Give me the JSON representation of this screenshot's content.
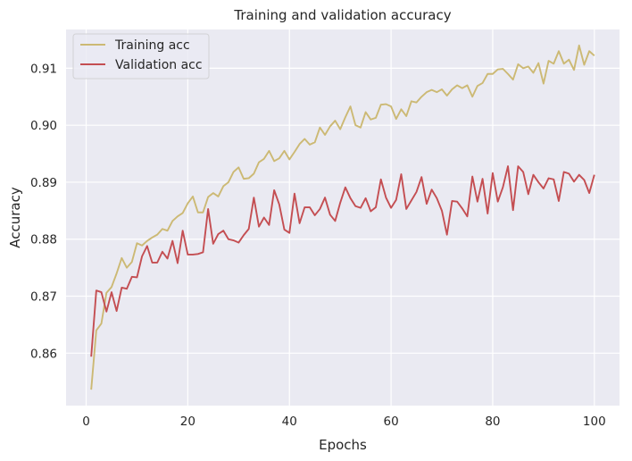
{
  "chart_data": {
    "type": "line",
    "title": "Training and validation accuracy",
    "xlabel": "Epochs",
    "ylabel": "Accuracy",
    "xlim": [
      -3.95,
      104.95
    ],
    "ylim": [
      0.8508,
      0.9168
    ],
    "xticks": [
      0,
      20,
      40,
      60,
      80,
      100
    ],
    "xtick_labels": [
      "0",
      "20",
      "40",
      "60",
      "80",
      "100"
    ],
    "yticks": [
      0.86,
      0.87,
      0.88,
      0.89,
      0.9,
      0.91
    ],
    "ytick_labels": [
      "0.86",
      "0.87",
      "0.88",
      "0.89",
      "0.90",
      "0.91"
    ],
    "grid": true,
    "legend": "top-left",
    "x": [
      1,
      2,
      3,
      4,
      5,
      6,
      7,
      8,
      9,
      10,
      11,
      12,
      13,
      14,
      15,
      16,
      17,
      18,
      19,
      20,
      21,
      22,
      23,
      24,
      25,
      26,
      27,
      28,
      29,
      30,
      31,
      32,
      33,
      34,
      35,
      36,
      37,
      38,
      39,
      40,
      41,
      42,
      43,
      44,
      45,
      46,
      47,
      48,
      49,
      50,
      51,
      52,
      53,
      54,
      55,
      56,
      57,
      58,
      59,
      60,
      61,
      62,
      63,
      64,
      65,
      66,
      67,
      68,
      69,
      70,
      71,
      72,
      73,
      74,
      75,
      76,
      77,
      78,
      79,
      80,
      81,
      82,
      83,
      84,
      85,
      86,
      87,
      88,
      89,
      90,
      91,
      92,
      93,
      94,
      95,
      96,
      97,
      98,
      99,
      100
    ],
    "series": [
      {
        "name": "Training acc",
        "color": "#ccb974",
        "values": [
          0.8536,
          0.864,
          0.8652,
          0.8706,
          0.8716,
          0.874,
          0.8767,
          0.875,
          0.876,
          0.8793,
          0.8789,
          0.8797,
          0.8803,
          0.8808,
          0.8818,
          0.8815,
          0.8832,
          0.884,
          0.8846,
          0.8863,
          0.8875,
          0.8847,
          0.8847,
          0.8874,
          0.8881,
          0.8875,
          0.8893,
          0.89,
          0.8918,
          0.8926,
          0.8906,
          0.8907,
          0.8915,
          0.8935,
          0.8941,
          0.8955,
          0.8937,
          0.8942,
          0.8955,
          0.894,
          0.8953,
          0.8967,
          0.8976,
          0.8966,
          0.897,
          0.8996,
          0.8983,
          0.8998,
          0.9008,
          0.8993,
          0.9014,
          0.9033,
          0.9,
          0.8996,
          0.9023,
          0.901,
          0.9013,
          0.9036,
          0.9037,
          0.9033,
          0.9011,
          0.9028,
          0.9016,
          0.9042,
          0.904,
          0.905,
          0.9058,
          0.9062,
          0.9058,
          0.9063,
          0.9052,
          0.9063,
          0.907,
          0.9065,
          0.907,
          0.905,
          0.9069,
          0.9074,
          0.909,
          0.909,
          0.9098,
          0.9099,
          0.909,
          0.908,
          0.9107,
          0.91,
          0.9103,
          0.9092,
          0.9109,
          0.9073,
          0.9113,
          0.9108,
          0.913,
          0.9108,
          0.9115,
          0.9097,
          0.914,
          0.9106,
          0.913,
          0.9122
        ]
      },
      {
        "name": "Validation acc",
        "color": "#c44e52",
        "values": [
          0.8594,
          0.871,
          0.8707,
          0.8673,
          0.8707,
          0.8674,
          0.8715,
          0.8713,
          0.8734,
          0.8733,
          0.877,
          0.8788,
          0.8759,
          0.8759,
          0.8778,
          0.8766,
          0.8797,
          0.8758,
          0.8815,
          0.8773,
          0.8773,
          0.8774,
          0.8777,
          0.8853,
          0.8792,
          0.8809,
          0.8815,
          0.88,
          0.8798,
          0.8794,
          0.8807,
          0.8818,
          0.8873,
          0.8822,
          0.8838,
          0.8825,
          0.8886,
          0.8861,
          0.8817,
          0.8811,
          0.888,
          0.8828,
          0.8856,
          0.8856,
          0.8842,
          0.8853,
          0.8873,
          0.8843,
          0.8832,
          0.8864,
          0.8891,
          0.8872,
          0.8858,
          0.8855,
          0.8872,
          0.8849,
          0.8856,
          0.8905,
          0.8873,
          0.8855,
          0.8869,
          0.8914,
          0.8853,
          0.8868,
          0.8883,
          0.8909,
          0.8862,
          0.8887,
          0.8872,
          0.885,
          0.8808,
          0.8867,
          0.8866,
          0.8854,
          0.884,
          0.891,
          0.8866,
          0.8906,
          0.8845,
          0.8916,
          0.8866,
          0.8891,
          0.8928,
          0.8851,
          0.8928,
          0.8918,
          0.8879,
          0.8913,
          0.89,
          0.8889,
          0.8907,
          0.8905,
          0.8867,
          0.8918,
          0.8915,
          0.8901,
          0.8913,
          0.8904,
          0.8881,
          0.8913
        ]
      }
    ]
  }
}
